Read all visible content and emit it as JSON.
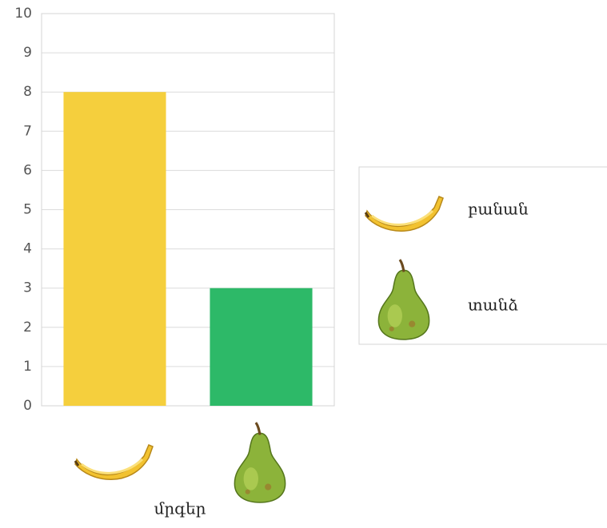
{
  "chart_data": {
    "type": "bar",
    "categories": [
      null,
      null
    ],
    "series": [
      {
        "name": "բանան",
        "color": "#f5cf3d",
        "values": [
          8,
          null
        ]
      },
      {
        "name": "տանձ",
        "color": "#2db968",
        "values": [
          null,
          3
        ]
      }
    ],
    "xlabel": "մրգեր",
    "ylim": [
      0,
      10
    ],
    "yticks": [
      0,
      1,
      2,
      3,
      4,
      5,
      6,
      7,
      8,
      9,
      10
    ],
    "grid": true,
    "legend": "right"
  }
}
